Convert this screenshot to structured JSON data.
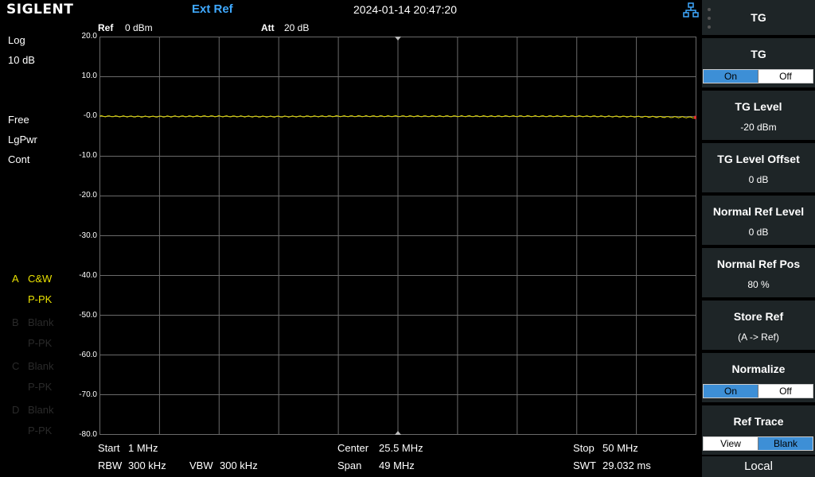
{
  "topbar": {
    "logo": "SIGLENT",
    "ext_ref": "Ext Ref",
    "datetime": "2024-01-14 20:47:20"
  },
  "left_info": {
    "scale_type": "Log",
    "scale_div": "10 dB",
    "trigger": "Free",
    "avg_type": "LgPwr",
    "sweep_mode": "Cont"
  },
  "traces": [
    {
      "letter": "A",
      "mode": "C&W",
      "detector": "P-PK",
      "color": "#e8e000"
    },
    {
      "letter": "B",
      "mode": "Blank",
      "detector": "P-PK",
      "color": "#2a2a2a"
    },
    {
      "letter": "C",
      "mode": "Blank",
      "detector": "P-PK",
      "color": "#2a2a2a"
    },
    {
      "letter": "D",
      "mode": "Blank",
      "detector": "P-PK",
      "color": "#2a2a2a"
    }
  ],
  "plot_header": {
    "ref_label": "Ref",
    "ref_value": "0 dBm",
    "att_label": "Att",
    "att_value": "20 dB"
  },
  "chart_data": {
    "type": "line",
    "y_tick_labels": [
      "20.0",
      "10.0",
      "-0.0",
      "-10.0",
      "-20.0",
      "-30.0",
      "-40.0",
      "-50.0",
      "-60.0",
      "-70.0",
      "-80.0"
    ],
    "ylim": [
      -80,
      20
    ],
    "xlim": [
      1,
      50
    ],
    "x_unit": "MHz",
    "y_unit": "dBm",
    "grid": true,
    "trace_color": "#e8e000",
    "series": [
      {
        "x": [
          1,
          5,
          10,
          15,
          20,
          25,
          30,
          35,
          40,
          45,
          50
        ],
        "y": [
          0.0,
          -0.1,
          0.0,
          -0.1,
          0.0,
          0.0,
          0.0,
          0.0,
          0.0,
          -0.1,
          -0.3
        ]
      }
    ]
  },
  "bottom": {
    "start_label": "Start",
    "start_value": "1 MHz",
    "center_label": "Center",
    "center_value": "25.5 MHz",
    "stop_label": "Stop",
    "stop_value": "50 MHz",
    "rbw_label": "RBW",
    "rbw_value": "300 kHz",
    "vbw_label": "VBW",
    "vbw_value": "300 kHz",
    "span_label": "Span",
    "span_value": "49 MHz",
    "swt_label": "SWT",
    "swt_value": "29.032 ms"
  },
  "menu": {
    "title": "TG",
    "tg": {
      "label": "TG",
      "on": "On",
      "off": "Off",
      "selected": "On"
    },
    "tg_level": {
      "label": "TG Level",
      "value": "-20 dBm"
    },
    "tg_level_offset": {
      "label": "TG Level Offset",
      "value": "0 dB"
    },
    "normal_ref_level": {
      "label": "Normal Ref Level",
      "value": "0 dB"
    },
    "normal_ref_pos": {
      "label": "Normal Ref Pos",
      "value": "80 %"
    },
    "store_ref": {
      "label": "Store Ref",
      "value": "(A -> Ref)"
    },
    "normalize": {
      "label": "Normalize",
      "on": "On",
      "off": "Off",
      "selected": "On"
    },
    "ref_trace": {
      "label": "Ref Trace",
      "view": "View",
      "blank": "Blank",
      "selected": "Blank"
    },
    "local": "Local"
  },
  "icons": {
    "network": "network-icon"
  },
  "colors": {
    "accent": "#3fa9ff",
    "trace": "#e8e000",
    "toggle_selected": "#3d8fd6"
  }
}
